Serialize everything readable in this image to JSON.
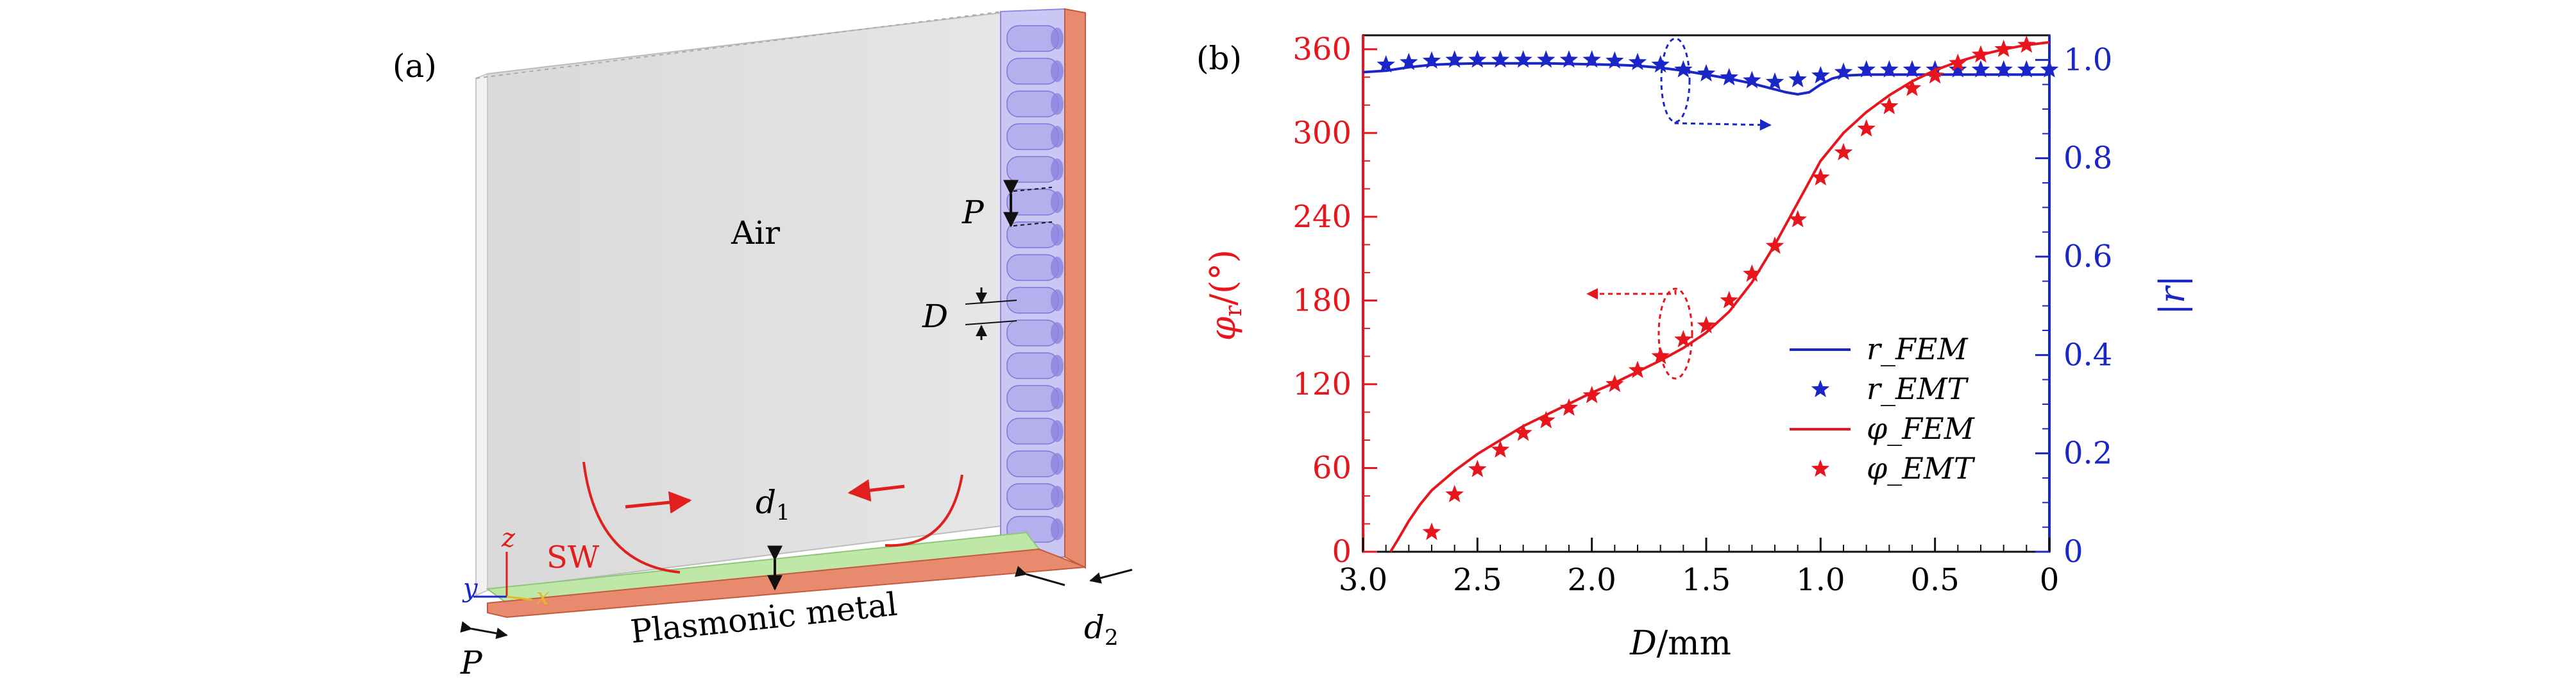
{
  "panel_a": {
    "label": "(a)",
    "air": "Air",
    "P_label": "P",
    "D_label": "D",
    "d1_label": "d",
    "d1_sub": "1",
    "d2_label": "d",
    "d2_sub": "2",
    "sw_label": "SW",
    "metal_label": "Plasmonic metal",
    "bottom_P": "P",
    "axis_z": "z",
    "axis_y": "y",
    "axis_x": "x",
    "colors": {
      "air": "#e2e2e2",
      "pillars": "#b9b4f0",
      "metal": "#e88a6e",
      "sw_layer": "#bfe8a8",
      "arrow": "#e0201d"
    }
  },
  "chart_data": {
    "type": "line",
    "panel_label": "(b)",
    "xlabel": "D",
    "xlabel_unit": "/mm",
    "ylabel_left_symbol": "φ",
    "ylabel_left_sub": "r",
    "ylabel_left_unit": "/(°)",
    "ylabel_right": "|r|",
    "xlim": [
      3.0,
      0
    ],
    "ylim_left": [
      0,
      370
    ],
    "ylim_right": [
      0,
      1.05
    ],
    "x_ticks": [
      "3.0",
      "2.5",
      "2.0",
      "1.5",
      "1.0",
      "0.5",
      "0"
    ],
    "y_left_ticks": [
      "0",
      "60",
      "120",
      "180",
      "240",
      "300",
      "360"
    ],
    "y_right_ticks": [
      "0",
      "0.2",
      "0.4",
      "0.6",
      "0.8",
      "1.0"
    ],
    "legend_position": "center-right",
    "colors": {
      "phase": "#e8151d",
      "reflect": "#1a26c8"
    },
    "series": [
      {
        "name": "r_FEM",
        "axis": "right",
        "style": "line",
        "x": [
          3.0,
          2.9,
          2.8,
          2.7,
          2.6,
          2.5,
          2.4,
          2.3,
          2.2,
          2.1,
          2.0,
          1.9,
          1.8,
          1.7,
          1.6,
          1.5,
          1.4,
          1.3,
          1.2,
          1.15,
          1.1,
          1.05,
          1.0,
          0.95,
          0.9,
          0.8,
          0.7,
          0.6,
          0.5,
          0.4,
          0.3,
          0.2,
          0.1,
          0.0
        ],
        "y": [
          0.975,
          0.978,
          0.985,
          0.99,
          0.992,
          0.993,
          0.993,
          0.993,
          0.993,
          0.992,
          0.991,
          0.99,
          0.988,
          0.984,
          0.978,
          0.97,
          0.962,
          0.952,
          0.94,
          0.934,
          0.93,
          0.934,
          0.95,
          0.962,
          0.968,
          0.97,
          0.97,
          0.97,
          0.97,
          0.97,
          0.97,
          0.97,
          0.97,
          0.97
        ]
      },
      {
        "name": "r_EMT",
        "axis": "right",
        "style": "star",
        "x": [
          2.9,
          2.8,
          2.7,
          2.6,
          2.5,
          2.4,
          2.3,
          2.2,
          2.1,
          2.0,
          1.9,
          1.8,
          1.7,
          1.6,
          1.5,
          1.4,
          1.3,
          1.2,
          1.1,
          1.0,
          0.9,
          0.8,
          0.7,
          0.6,
          0.5,
          0.4,
          0.3,
          0.2,
          0.1,
          0.0
        ],
        "y": [
          0.99,
          0.995,
          0.998,
          1.0,
          1.0,
          1.0,
          1.0,
          1.0,
          1.0,
          1.0,
          0.998,
          0.995,
          0.99,
          0.98,
          0.972,
          0.964,
          0.958,
          0.955,
          0.96,
          0.968,
          0.975,
          0.98,
          0.98,
          0.98,
          0.98,
          0.98,
          0.98,
          0.98,
          0.98,
          0.98
        ]
      },
      {
        "name": "φ_FEM",
        "axis": "left",
        "style": "line",
        "x": [
          2.88,
          2.85,
          2.8,
          2.75,
          2.7,
          2.6,
          2.5,
          2.4,
          2.3,
          2.2,
          2.1,
          2.0,
          1.9,
          1.8,
          1.7,
          1.6,
          1.5,
          1.4,
          1.3,
          1.2,
          1.1,
          1.0,
          0.9,
          0.8,
          0.7,
          0.6,
          0.5,
          0.4,
          0.3,
          0.2,
          0.1,
          0.0
        ],
        "y": [
          0,
          8,
          22,
          34,
          44,
          58,
          70,
          80,
          90,
          98,
          106,
          114,
          121,
          129,
          137,
          146,
          157,
          172,
          193,
          220,
          250,
          280,
          300,
          315,
          327,
          337,
          345,
          351,
          356,
          360,
          363,
          365
        ]
      },
      {
        "name": "φ_EMT",
        "axis": "left",
        "style": "star",
        "x": [
          2.7,
          2.6,
          2.5,
          2.4,
          2.3,
          2.2,
          2.1,
          2.0,
          1.9,
          1.8,
          1.7,
          1.6,
          1.5,
          1.4,
          1.3,
          1.2,
          1.1,
          1.0,
          0.9,
          0.8,
          0.7,
          0.6,
          0.5,
          0.4,
          0.3,
          0.2,
          0.1
        ],
        "y": [
          14,
          41,
          59,
          73,
          85,
          94,
          103,
          112,
          120,
          130,
          140,
          152,
          162,
          180,
          199,
          219,
          238,
          268,
          286,
          303,
          319,
          332,
          341,
          350,
          356,
          360,
          363
        ]
      }
    ]
  }
}
